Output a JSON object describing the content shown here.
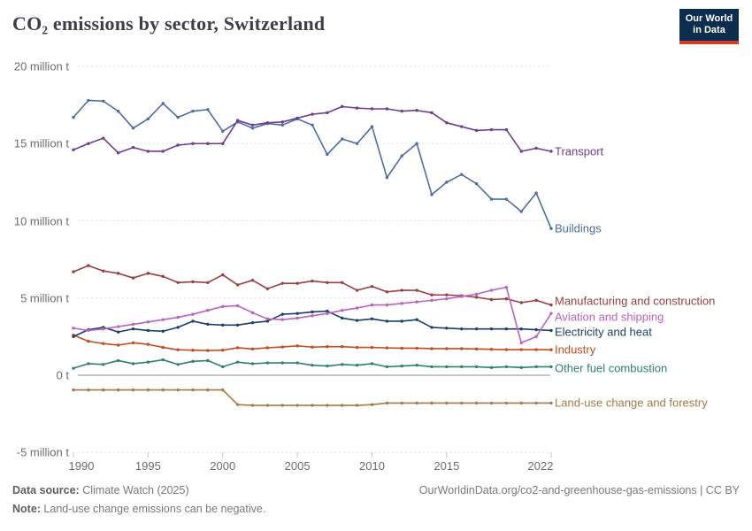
{
  "header": {
    "title": "CO₂ emissions by sector, Switzerland",
    "logo": {
      "line1": "Our World",
      "line2": "in Data"
    }
  },
  "chart_data": {
    "type": "line",
    "title": "CO₂ emissions by sector, Switzerland",
    "region": "Switzerland",
    "unit": "million t",
    "ylim": [
      -5,
      20
    ],
    "grid": "dashed-horizontal",
    "legend_position": "right-inline-labels",
    "x": [
      1990,
      1991,
      1992,
      1993,
      1994,
      1995,
      1996,
      1997,
      1998,
      1999,
      2000,
      2001,
      2002,
      2003,
      2004,
      2005,
      2006,
      2007,
      2008,
      2009,
      2010,
      2011,
      2012,
      2013,
      2014,
      2015,
      2016,
      2017,
      2018,
      2019,
      2020,
      2021,
      2022
    ],
    "x_tick_labels": [
      "1990",
      "1995",
      "2000",
      "2005",
      "2010",
      "2015",
      "2022"
    ],
    "x_tick_years": [
      1990,
      1995,
      2000,
      2005,
      2010,
      2015,
      2022
    ],
    "y_ticks": [
      {
        "value": 20,
        "label": "20 million t"
      },
      {
        "value": 15,
        "label": "15 million t"
      },
      {
        "value": 10,
        "label": "10 million t"
      },
      {
        "value": 5,
        "label": "5 million t"
      },
      {
        "value": 0,
        "label": "0 t"
      },
      {
        "value": -5,
        "label": "-5 million t"
      }
    ],
    "series": [
      {
        "name": "Transport",
        "color": "#6d3e91",
        "values": [
          14.6,
          15.0,
          15.35,
          14.4,
          14.75,
          14.5,
          14.5,
          14.9,
          15.0,
          15.0,
          15.0,
          16.5,
          16.2,
          16.35,
          16.4,
          16.65,
          16.9,
          17.0,
          17.4,
          17.3,
          17.25,
          17.25,
          17.1,
          17.15,
          17.0,
          16.35,
          16.1,
          15.85,
          15.9,
          15.9,
          14.5,
          14.7,
          14.5
        ]
      },
      {
        "name": "Buildings",
        "color": "#4c6da6",
        "values": [
          16.7,
          17.8,
          17.75,
          17.1,
          16.0,
          16.6,
          17.6,
          16.7,
          17.1,
          17.2,
          15.8,
          16.4,
          16.0,
          16.3,
          16.2,
          16.6,
          16.2,
          14.3,
          15.3,
          15.0,
          16.1,
          12.8,
          14.2,
          15.0,
          11.7,
          12.5,
          13.0,
          12.4,
          11.4,
          11.4,
          10.6,
          11.8,
          9.5
        ]
      },
      {
        "name": "Manufacturing and construction",
        "color": "#9a3e3e",
        "values": [
          6.7,
          7.1,
          6.75,
          6.6,
          6.3,
          6.6,
          6.4,
          6.0,
          6.05,
          6.0,
          6.5,
          5.85,
          6.15,
          5.6,
          5.95,
          5.95,
          6.1,
          6.0,
          6.0,
          5.5,
          5.75,
          5.4,
          5.5,
          5.5,
          5.2,
          5.2,
          5.15,
          5.05,
          4.9,
          4.95,
          4.7,
          4.85,
          4.55
        ]
      },
      {
        "name": "Aviation and shipping",
        "color": "#ba62c4",
        "values": [
          3.05,
          2.9,
          3.0,
          3.15,
          3.3,
          3.45,
          3.6,
          3.75,
          3.95,
          4.2,
          4.45,
          4.5,
          4.05,
          3.65,
          3.6,
          3.7,
          3.85,
          4.0,
          4.2,
          4.35,
          4.55,
          4.55,
          4.65,
          4.75,
          4.85,
          4.95,
          5.1,
          5.25,
          5.5,
          5.7,
          2.1,
          2.5,
          4.0
        ]
      },
      {
        "name": "Electricity and heat",
        "color": "#1d3d6e",
        "values": [
          2.5,
          2.95,
          3.1,
          2.8,
          3.0,
          2.9,
          2.85,
          3.1,
          3.5,
          3.3,
          3.25,
          3.25,
          3.4,
          3.5,
          3.95,
          4.0,
          4.1,
          4.15,
          3.7,
          3.55,
          3.65,
          3.5,
          3.5,
          3.6,
          3.1,
          3.05,
          3.0,
          3.0,
          3.0,
          3.0,
          3.0,
          2.95,
          2.9
        ]
      },
      {
        "name": "Industry",
        "color": "#c04e21",
        "values": [
          2.6,
          2.2,
          2.05,
          1.95,
          2.1,
          2.0,
          1.8,
          1.65,
          1.62,
          1.6,
          1.62,
          1.78,
          1.7,
          1.78,
          1.83,
          1.9,
          1.82,
          1.85,
          1.85,
          1.8,
          1.8,
          1.77,
          1.75,
          1.75,
          1.72,
          1.72,
          1.72,
          1.7,
          1.68,
          1.66,
          1.66,
          1.66,
          1.65
        ]
      },
      {
        "name": "Other fuel combustion",
        "color": "#2c8465",
        "values": [
          0.45,
          0.75,
          0.7,
          0.95,
          0.75,
          0.85,
          1.0,
          0.7,
          0.9,
          0.95,
          0.55,
          0.85,
          0.75,
          0.8,
          0.8,
          0.8,
          0.65,
          0.6,
          0.7,
          0.65,
          0.75,
          0.55,
          0.6,
          0.65,
          0.55,
          0.55,
          0.55,
          0.55,
          0.5,
          0.55,
          0.5,
          0.55,
          0.55
        ]
      },
      {
        "name": "Land-use change and forestry",
        "color": "#a47b48",
        "values": [
          -0.95,
          -0.95,
          -0.95,
          -0.95,
          -0.95,
          -0.95,
          -0.95,
          -0.95,
          -0.95,
          -0.95,
          -0.95,
          -1.9,
          -1.95,
          -1.95,
          -1.95,
          -1.95,
          -1.95,
          -1.95,
          -1.95,
          -1.95,
          -1.9,
          -1.8,
          -1.8,
          -1.8,
          -1.8,
          -1.8,
          -1.8,
          -1.8,
          -1.8,
          -1.8,
          -1.8,
          -1.8,
          -1.8
        ]
      }
    ]
  },
  "footer": {
    "datasource_label": "Data source:",
    "datasource_value": " Climate Watch (2025)",
    "note_label": "Note:",
    "note_value": " Land-use change emissions can be negative.",
    "citation": "OurWorldinData.org/co2-and-greenhouse-gas-emissions | CC BY"
  },
  "colors": {
    "grid": "#e2e2e2",
    "zero_line": "#8f8f8f",
    "tick_mark": "#c4c4c4",
    "tick_text": "#6b6e71",
    "logo_bg": "#0d2d4f",
    "logo_accent": "#d43a2c"
  }
}
